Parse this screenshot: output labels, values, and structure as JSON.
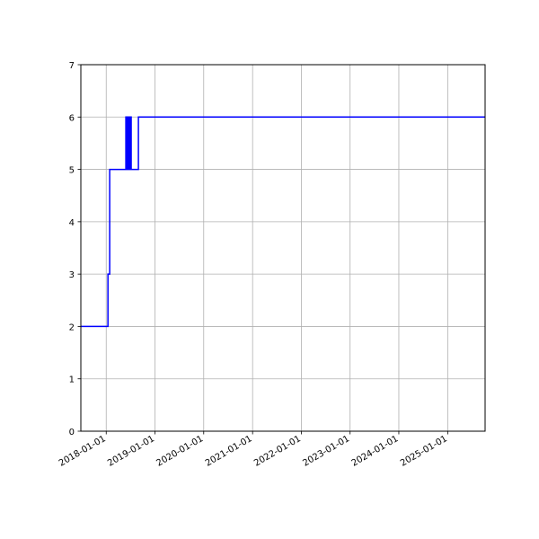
{
  "chart_data": {
    "type": "line",
    "title": "",
    "xlabel": "",
    "ylabel": "",
    "xlim": [
      "2017-06-25",
      "2025-10-08"
    ],
    "ylim": [
      0,
      7
    ],
    "grid": true,
    "line_color": "#0000ff",
    "step": "post",
    "x_ticks": [
      "2018-01-01",
      "2019-01-01",
      "2020-01-01",
      "2021-01-01",
      "2022-01-01",
      "2023-01-01",
      "2024-01-01",
      "2025-01-01"
    ],
    "y_ticks": [
      "0",
      "1",
      "2",
      "3",
      "4",
      "5",
      "6",
      "7"
    ],
    "series": [
      {
        "x": [
          "2017-06-25",
          "2018-01-14",
          "2018-01-20",
          "2018-01-27",
          "2018-05-28",
          "2018-06-02",
          "2018-06-06",
          "2018-06-10",
          "2018-06-14",
          "2018-06-18",
          "2018-06-22",
          "2018-06-26",
          "2018-07-01",
          "2018-07-07",
          "2018-08-30",
          "2025-10-08"
        ],
        "values": [
          2,
          3,
          3,
          5,
          6,
          5,
          6,
          5,
          6,
          5,
          6,
          5,
          6,
          5,
          6,
          6
        ]
      }
    ]
  }
}
